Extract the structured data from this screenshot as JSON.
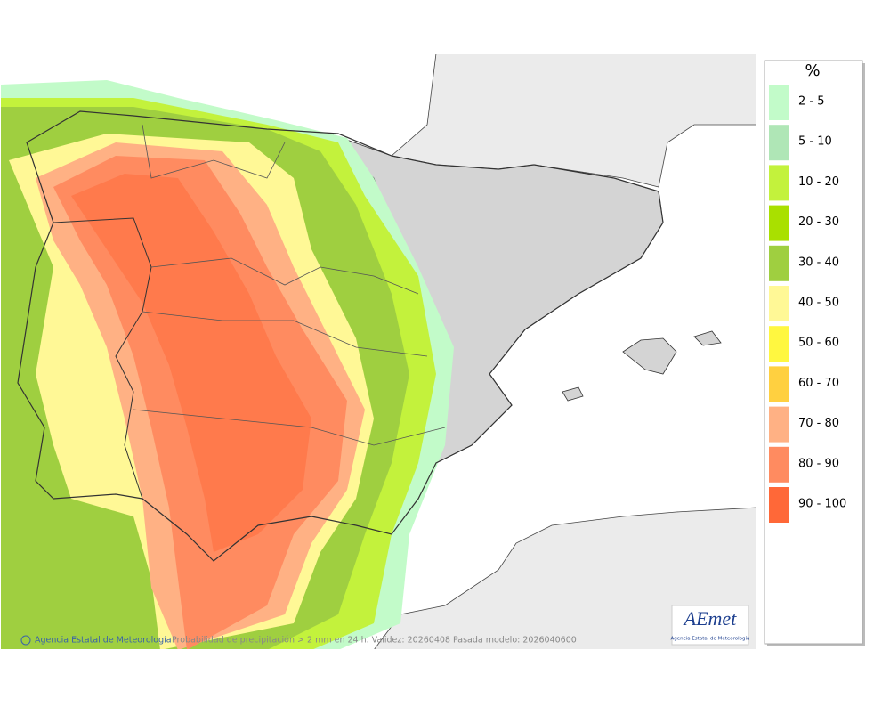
{
  "map": {
    "footer": {
      "agency": "Agencia Estatal de Meteorología",
      "caption": "Probabilidad de precipitación > 2 mm en 24 h. Validez: 20260408 Pasada modelo: 2026040600"
    },
    "logo": {
      "name": "AEmet",
      "subtitle": "Agencia Estatal de Meteorología"
    }
  },
  "legend": {
    "title": "%",
    "items": [
      {
        "label": "2 - 5",
        "color": "#c2fbc9"
      },
      {
        "label": "5 - 10",
        "color": "#afe6b6"
      },
      {
        "label": "10 - 20",
        "color": "#c3f23c"
      },
      {
        "label": "20 - 30",
        "color": "#a9e000"
      },
      {
        "label": "30 - 40",
        "color": "#9fcf40"
      },
      {
        "label": "40 - 50",
        "color": "#fff896"
      },
      {
        "label": "50 - 60",
        "color": "#fff740"
      },
      {
        "label": "60 - 70",
        "color": "#ffd040"
      },
      {
        "label": "70 - 80",
        "color": "#ffb184"
      },
      {
        "label": "80 - 90",
        "color": "#ff8b60"
      },
      {
        "label": "90 - 100",
        "color": "#ff6838"
      }
    ]
  }
}
